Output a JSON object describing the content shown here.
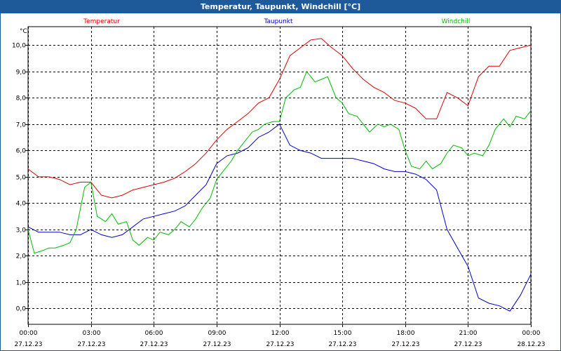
{
  "window": {
    "title": "Temperatur, Taupunkt, Windchill [°C]"
  },
  "chart_data": {
    "type": "line",
    "title": "Temperatur, Taupunkt, Windchill [°C]",
    "ylabel": "°C",
    "xlabel": "",
    "ylim": [
      -0.6,
      10.7
    ],
    "xlim": [
      0,
      24
    ],
    "grid": true,
    "yticks": [
      "0,0",
      "1,0",
      "2,0",
      "3,0",
      "4,0",
      "5,0",
      "6,0",
      "7,0",
      "8,0",
      "9,0",
      "10,0"
    ],
    "ytick_values": [
      0,
      1,
      2,
      3,
      4,
      5,
      6,
      7,
      8,
      9,
      10
    ],
    "xticks": [
      {
        "time": "00:00",
        "date": "27.12.23",
        "h": 0
      },
      {
        "time": "03:00",
        "date": "27.12.23",
        "h": 3
      },
      {
        "time": "06:00",
        "date": "27.12.23",
        "h": 6
      },
      {
        "time": "09:00",
        "date": "27.12.23",
        "h": 9
      },
      {
        "time": "12:00",
        "date": "27.12.23",
        "h": 12
      },
      {
        "time": "15:00",
        "date": "27.12.23",
        "h": 15
      },
      {
        "time": "18:00",
        "date": "27.12.23",
        "h": 18
      },
      {
        "time": "21:00",
        "date": "27.12.23",
        "h": 21
      },
      {
        "time": "00:00",
        "date": "28.12.23",
        "h": 24
      }
    ],
    "series": [
      {
        "name": "Temperatur",
        "color": "#dd0000",
        "x": [
          0,
          0.5,
          1,
          1.5,
          2,
          2.5,
          3,
          3.5,
          4,
          4.5,
          5,
          5.5,
          6,
          6.5,
          7,
          7.5,
          8,
          8.5,
          9,
          9.5,
          10,
          10.5,
          11,
          11.5,
          12,
          12.5,
          13,
          13.5,
          14,
          14.5,
          15,
          15.5,
          16,
          16.5,
          17,
          17.5,
          18,
          18.5,
          19,
          19.5,
          20,
          20.5,
          21,
          21.5,
          22,
          22.5,
          23,
          23.5,
          24
        ],
        "values": [
          5.3,
          5.0,
          5.0,
          4.9,
          4.7,
          4.8,
          4.8,
          4.3,
          4.2,
          4.3,
          4.5,
          4.6,
          4.7,
          4.8,
          4.95,
          5.2,
          5.5,
          5.9,
          6.4,
          6.8,
          7.1,
          7.4,
          7.8,
          8.0,
          8.7,
          9.6,
          9.9,
          10.2,
          10.25,
          9.9,
          9.6,
          9.1,
          8.7,
          8.4,
          8.2,
          7.9,
          7.8,
          7.6,
          7.2,
          7.2,
          8.2,
          8.0,
          7.7,
          8.8,
          9.2,
          9.2,
          9.8,
          9.9,
          10.0
        ]
      },
      {
        "name": "Taupunkt",
        "color": "#0000cc",
        "x": [
          0,
          0.5,
          1,
          1.5,
          2,
          2.5,
          3,
          3.5,
          4,
          4.5,
          5,
          5.5,
          6,
          6.5,
          7,
          7.5,
          8,
          8.5,
          9,
          9.5,
          10,
          10.5,
          11,
          11.5,
          12,
          12.5,
          13,
          13.5,
          14,
          14.5,
          15,
          15.5,
          16,
          16.5,
          17,
          17.5,
          18,
          18.5,
          19,
          19.5,
          20,
          20.5,
          21,
          21.5,
          22,
          22.5,
          23,
          23.5,
          24
        ],
        "values": [
          3.1,
          2.9,
          2.9,
          2.9,
          2.8,
          2.8,
          3.0,
          2.8,
          2.7,
          2.8,
          3.1,
          3.4,
          3.5,
          3.6,
          3.7,
          3.9,
          4.3,
          4.7,
          5.5,
          5.8,
          5.9,
          6.1,
          6.5,
          6.7,
          7.0,
          6.2,
          6.0,
          5.9,
          5.7,
          5.7,
          5.7,
          5.7,
          5.6,
          5.5,
          5.3,
          5.2,
          5.2,
          5.1,
          4.9,
          4.5,
          3.0,
          2.3,
          1.6,
          0.4,
          0.2,
          0.1,
          -0.1,
          0.5,
          1.3
        ]
      },
      {
        "name": "Windchill",
        "color": "#00bb00",
        "x": [
          0,
          0.3,
          0.7,
          1,
          1.3,
          1.7,
          2,
          2.3,
          2.7,
          3,
          3.3,
          3.7,
          4,
          4.3,
          4.7,
          5,
          5.3,
          5.7,
          6,
          6.3,
          6.7,
          7,
          7.3,
          7.7,
          8,
          8.3,
          8.7,
          9,
          9.3,
          9.7,
          10,
          10.3,
          10.7,
          11,
          11.3,
          11.7,
          12,
          12.3,
          12.7,
          13,
          13.3,
          13.7,
          14,
          14.3,
          14.7,
          15,
          15.3,
          15.7,
          16,
          16.3,
          16.7,
          17,
          17.3,
          17.7,
          18,
          18.3,
          18.7,
          19,
          19.3,
          19.7,
          20,
          20.3,
          20.7,
          21,
          21.3,
          21.7,
          22,
          22.3,
          22.7,
          23,
          23.3,
          23.7,
          24
        ],
        "values": [
          3.0,
          2.1,
          2.2,
          2.3,
          2.3,
          2.4,
          2.5,
          3.0,
          4.6,
          4.8,
          3.5,
          3.3,
          3.6,
          3.2,
          3.3,
          2.6,
          2.4,
          2.7,
          2.6,
          2.9,
          2.8,
          3.0,
          3.3,
          3.1,
          3.4,
          3.8,
          4.2,
          4.9,
          5.2,
          5.6,
          6.0,
          6.3,
          6.7,
          6.8,
          7.0,
          7.1,
          7.1,
          8.0,
          8.3,
          8.4,
          9.0,
          8.6,
          8.7,
          8.8,
          8.0,
          7.8,
          7.4,
          7.3,
          7.0,
          6.7,
          7.0,
          6.9,
          7.0,
          6.8,
          6.0,
          5.4,
          5.3,
          5.6,
          5.3,
          5.5,
          5.9,
          6.2,
          6.1,
          5.8,
          5.9,
          5.8,
          6.2,
          6.8,
          7.2,
          6.9,
          7.3,
          7.2,
          7.5
        ]
      }
    ]
  }
}
